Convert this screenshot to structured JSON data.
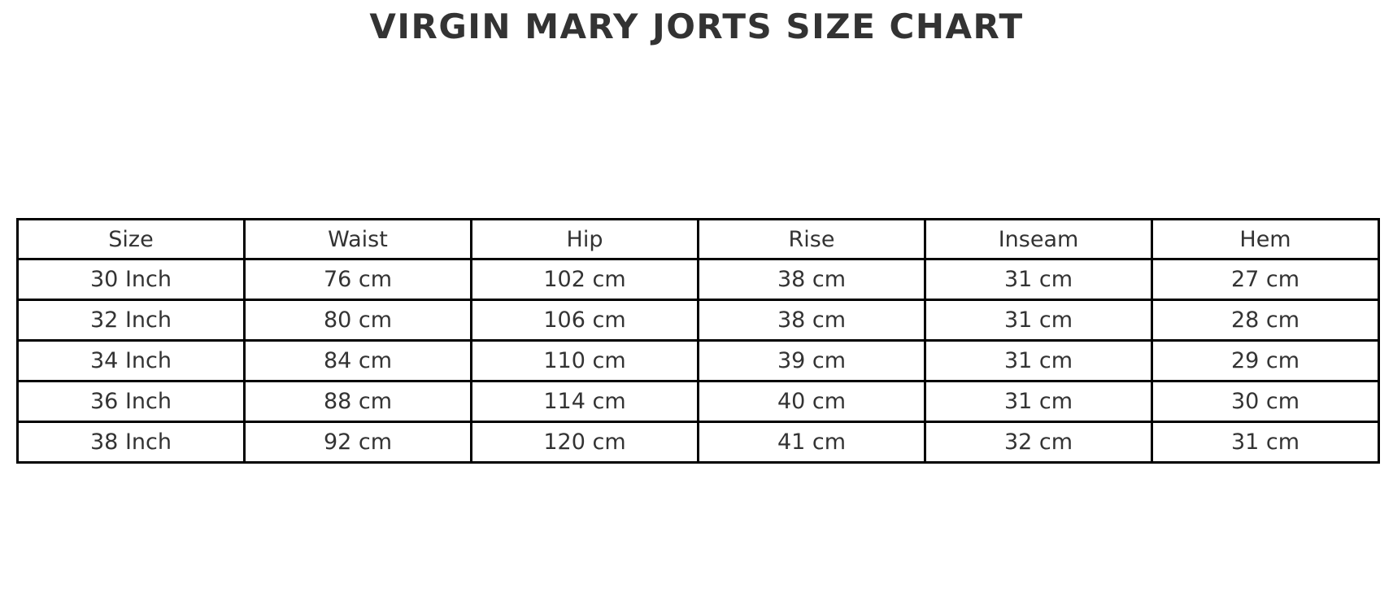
{
  "title": "VIRGIN MARY JORTS SIZE CHART",
  "colors": {
    "background": "#ffffff",
    "text": "#333333",
    "border": "#000000"
  },
  "table": {
    "headers": [
      "Size",
      "Waist",
      "Hip",
      "Rise",
      "Inseam",
      "Hem"
    ],
    "rows": [
      [
        "30 Inch",
        "76 cm",
        "102 cm",
        "38 cm",
        "31 cm",
        "27 cm"
      ],
      [
        "32 Inch",
        "80 cm",
        "106 cm",
        "38 cm",
        "31 cm",
        "28 cm"
      ],
      [
        "34 Inch",
        "84 cm",
        "110 cm",
        "39 cm",
        "31 cm",
        "29 cm"
      ],
      [
        "36 Inch",
        "88 cm",
        "114 cm",
        "40 cm",
        "31 cm",
        "30 cm"
      ],
      [
        "38 Inch",
        "92 cm",
        "120 cm",
        "41 cm",
        "32 cm",
        "31 cm"
      ]
    ]
  },
  "chart_data": {
    "type": "table",
    "title": "VIRGIN MARY JORTS SIZE CHART",
    "columns": [
      "Size",
      "Waist",
      "Hip",
      "Rise",
      "Inseam",
      "Hem"
    ],
    "rows": [
      {
        "size": "30 Inch",
        "waist_cm": 76,
        "hip_cm": 102,
        "rise_cm": 38,
        "inseam_cm": 31,
        "hem_cm": 27
      },
      {
        "size": "32 Inch",
        "waist_cm": 80,
        "hip_cm": 106,
        "rise_cm": 38,
        "inseam_cm": 31,
        "hem_cm": 28
      },
      {
        "size": "34 Inch",
        "waist_cm": 84,
        "hip_cm": 110,
        "rise_cm": 39,
        "inseam_cm": 31,
        "hem_cm": 29
      },
      {
        "size": "36 Inch",
        "waist_cm": 88,
        "hip_cm": 114,
        "rise_cm": 40,
        "inseam_cm": 31,
        "hem_cm": 30
      },
      {
        "size": "38 Inch",
        "waist_cm": 92,
        "hip_cm": 120,
        "rise_cm": 41,
        "inseam_cm": 32,
        "hem_cm": 31
      }
    ],
    "units": "cm",
    "layout": {
      "grid": "full-borders",
      "text_align": "center",
      "legend": "none"
    }
  }
}
